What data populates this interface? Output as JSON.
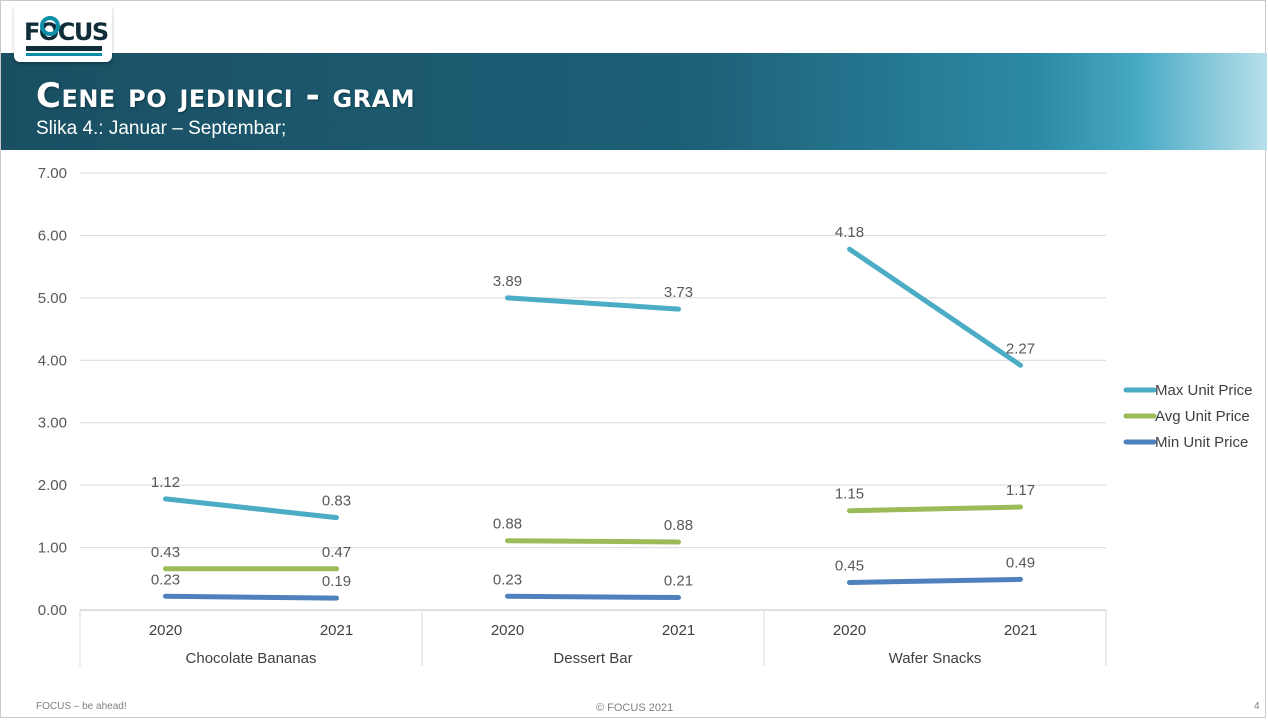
{
  "slide": {
    "logo_text": "FOCUS",
    "title": "Cene po jedinici - gram",
    "subtitle": "Slika 4.: Januar – Septembar;",
    "footer_left": "FOCUS – be ahead!",
    "footer_center": "© FOCUS 2021",
    "page_number": "4"
  },
  "chart_data": {
    "type": "line",
    "title": "",
    "xlabel": "",
    "ylabel": "",
    "ylim": [
      0,
      7
    ],
    "yticks": [
      "0.00",
      "1.00",
      "2.00",
      "3.00",
      "4.00",
      "5.00",
      "6.00",
      "7.00"
    ],
    "grid": true,
    "legend_position": "right",
    "groups": [
      {
        "name": "Chocolate Bananas",
        "categories": [
          "2020",
          "2021"
        ]
      },
      {
        "name": "Dessert Bar",
        "categories": [
          "2020",
          "2021"
        ]
      },
      {
        "name": "Wafer Snacks",
        "categories": [
          "2020",
          "2021"
        ]
      }
    ],
    "series": [
      {
        "name": "Max Unit Price",
        "color": "#4bacc6",
        "plotted": [
          [
            1.78,
            1.48
          ],
          [
            5.0,
            4.82
          ],
          [
            5.78,
            3.92
          ]
        ],
        "labels": [
          [
            "1.12",
            "0.83"
          ],
          [
            "3.89",
            "3.73"
          ],
          [
            "4.18",
            "2.27"
          ]
        ]
      },
      {
        "name": "Avg Unit Price",
        "color": "#9bbb59",
        "plotted": [
          [
            0.66,
            0.66
          ],
          [
            1.11,
            1.09
          ],
          [
            1.59,
            1.65
          ]
        ],
        "labels": [
          [
            "0.43",
            "0.47"
          ],
          [
            "0.88",
            "0.88"
          ],
          [
            "1.15",
            "1.17"
          ]
        ]
      },
      {
        "name": "Min Unit Price",
        "color": "#4f81bd",
        "plotted": [
          [
            0.22,
            0.19
          ],
          [
            0.22,
            0.2
          ],
          [
            0.44,
            0.49
          ]
        ],
        "labels": [
          [
            "0.23",
            "0.19"
          ],
          [
            "0.23",
            "0.21"
          ],
          [
            "0.45",
            "0.49"
          ]
        ]
      }
    ]
  }
}
